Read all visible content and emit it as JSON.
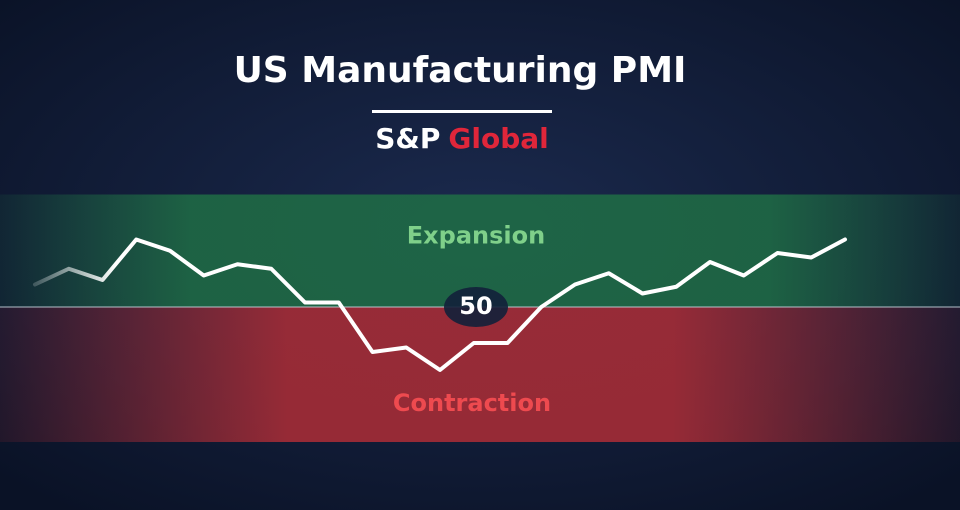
{
  "chart_data": {
    "type": "line",
    "title": "US Manufacturing PMI",
    "brand": {
      "name": "S&P",
      "suffix": "Global"
    },
    "zones": {
      "upper": "Expansion",
      "lower": "Contraction"
    },
    "reference": 50,
    "categories": [
      null,
      null,
      null,
      null,
      null,
      null,
      null,
      null,
      null,
      null,
      null,
      null,
      null,
      null,
      null,
      null,
      null,
      null,
      null,
      null,
      null,
      null,
      null,
      null,
      null
    ],
    "values": [
      51.0,
      51.7,
      51.2,
      53.0,
      52.5,
      51.4,
      51.9,
      51.7,
      50.2,
      50.2,
      48.0,
      48.2,
      47.2,
      48.4,
      48.4,
      50.0,
      51.0,
      51.5,
      50.6,
      50.9,
      52.0,
      51.4,
      52.4,
      52.2,
      53.0
    ],
    "color": "#ffffff",
    "ylim": [
      44,
      55
    ]
  }
}
